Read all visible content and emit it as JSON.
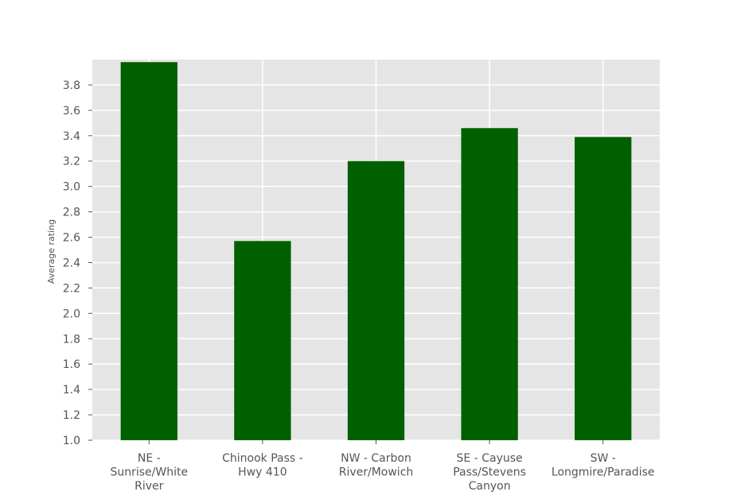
{
  "chart_data": {
    "type": "bar",
    "title": "",
    "xlabel": "",
    "ylabel": "Average rating",
    "categories": [
      [
        "NE -",
        "Sunrise/White",
        "River"
      ],
      [
        "Chinook Pass -",
        "Hwy 410"
      ],
      [
        "NW - Carbon",
        "River/Mowich"
      ],
      [
        "SE - Cayuse",
        "Pass/Stevens",
        "Canyon"
      ],
      [
        "SW -",
        "Longmire/Paradise"
      ]
    ],
    "values": [
      3.98,
      2.57,
      3.2,
      3.46,
      3.39
    ],
    "ylim": [
      1.0,
      4.0
    ],
    "yticks": [
      "1.0",
      "1.2",
      "1.4",
      "1.6",
      "1.8",
      "2.0",
      "2.2",
      "2.4",
      "2.6",
      "2.8",
      "3.0",
      "3.2",
      "3.4",
      "3.6",
      "3.8"
    ],
    "grid": true,
    "legend": "none",
    "colors": {
      "bar": "#006000",
      "plot_background": "#e5e5e5",
      "grid": "#ffffff",
      "tick_text": "#555555"
    }
  }
}
